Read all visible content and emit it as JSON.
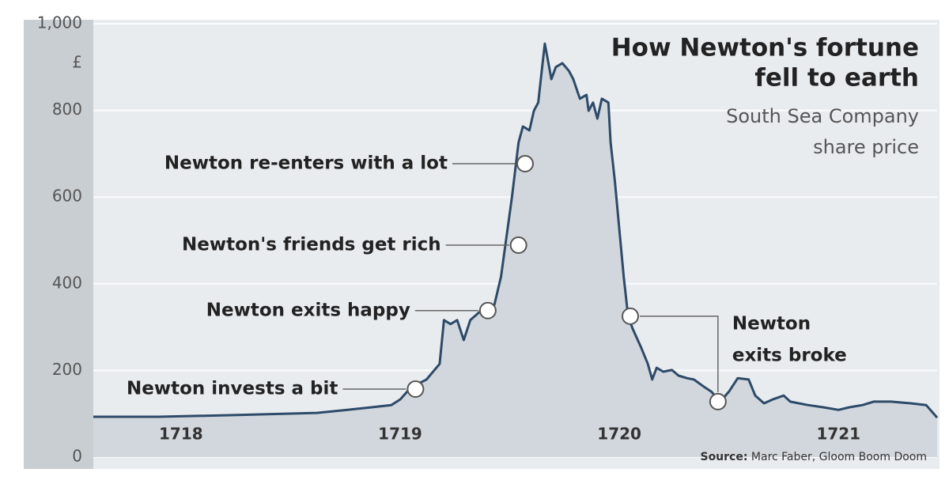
{
  "chart_data": {
    "type": "area",
    "title": [
      "How Newton's fortune",
      "fell to earth"
    ],
    "subtitle": [
      "South Sea Company",
      "share price"
    ],
    "y_unit": "£",
    "source_label": "Source:",
    "source": "Marc Faber, Gloom Boom Doom",
    "x": [
      1717.6,
      1717.9,
      1718.26,
      1718.62,
      1718.76,
      1718.87,
      1718.96,
      1719.0,
      1719.05,
      1719.12,
      1719.18,
      1719.2,
      1719.23,
      1719.26,
      1719.29,
      1719.32,
      1719.36,
      1719.4,
      1719.43,
      1719.46,
      1719.48,
      1719.51,
      1719.54,
      1719.56,
      1719.59,
      1719.61,
      1719.63,
      1719.65,
      1719.66,
      1719.67,
      1719.69,
      1719.71,
      1719.74,
      1719.77,
      1719.79,
      1719.82,
      1719.85,
      1719.86,
      1719.88,
      1719.9,
      1719.92,
      1719.95,
      1719.96,
      1719.98,
      1720.0,
      1720.02,
      1720.04,
      1720.06,
      1720.1,
      1720.13,
      1720.15,
      1720.17,
      1720.2,
      1720.24,
      1720.27,
      1720.31,
      1720.34,
      1720.39,
      1720.42,
      1720.46,
      1720.5,
      1720.54,
      1720.59,
      1720.62,
      1720.66,
      1720.7,
      1720.75,
      1720.78,
      1720.86,
      1720.93,
      1721.0,
      1721.05,
      1721.11,
      1721.16,
      1721.24,
      1721.33,
      1721.4,
      1721.45
    ],
    "series": [
      {
        "name": "South Sea Company share price",
        "color": "#2d4a68",
        "fill": "#d2d7dd",
        "values": [
          93,
          93,
          97,
          102,
          109,
          115,
          120,
          133,
          161,
          179,
          215,
          316,
          307,
          316,
          270,
          316,
          334,
          338,
          352,
          416,
          489,
          599,
          726,
          763,
          754,
          799,
          818,
          909,
          954,
          927,
          872,
          900,
          909,
          891,
          872,
          827,
          836,
          799,
          818,
          781,
          827,
          818,
          726,
          635,
          526,
          416,
          325,
          297,
          252,
          215,
          179,
          206,
          197,
          201,
          188,
          182,
          179,
          161,
          151,
          128,
          151,
          182,
          179,
          142,
          124,
          133,
          142,
          128,
          120,
          115,
          109,
          115,
          120,
          128,
          128,
          124,
          120,
          91
        ]
      }
    ],
    "xlim": [
      1717.6,
      1721.45
    ],
    "xticks": [
      1718,
      1719,
      1720,
      1721
    ],
    "ylim": [
      0,
      1000
    ],
    "yticks": [
      0,
      200,
      400,
      600,
      800,
      {
        "value": 1000,
        "label": "1,000"
      }
    ],
    "grid": true,
    "annotations": [
      {
        "text": [
          "Newton invests a bit"
        ],
        "points": [
          {
            "x": 1719.07,
            "y": 157
          }
        ]
      },
      {
        "text": [
          "Newton exits happy"
        ],
        "points": [
          {
            "x": 1719.4,
            "y": 338
          }
        ]
      },
      {
        "text": [
          "Newton's friends get rich"
        ],
        "points": [
          {
            "x": 1719.54,
            "y": 489
          }
        ]
      },
      {
        "text": [
          "Newton re-enters with a lot"
        ],
        "points": [
          {
            "x": 1719.57,
            "y": 677
          }
        ]
      },
      {
        "text": [
          "Newton",
          "exits broke"
        ],
        "points": [
          {
            "x": 1720.05,
            "y": 325
          },
          {
            "x": 1720.45,
            "y": 128
          }
        ]
      }
    ]
  }
}
